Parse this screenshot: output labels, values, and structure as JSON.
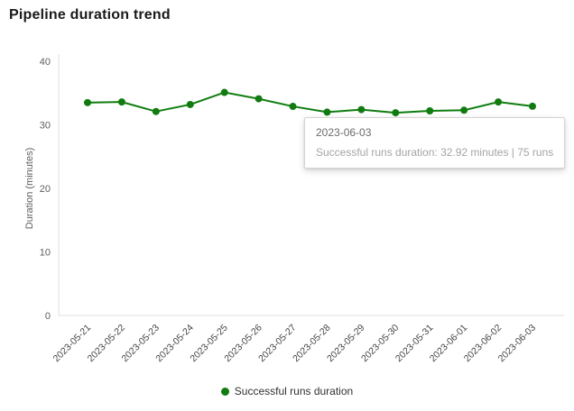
{
  "page": {
    "title": "Pipeline duration trend"
  },
  "chart_data": {
    "type": "line",
    "title": "Pipeline duration trend",
    "xlabel": "",
    "ylabel": "Duration (minutes)",
    "ylim": [
      0,
      40
    ],
    "yticks": [
      0,
      10,
      20,
      30,
      40
    ],
    "grid": false,
    "legend_position": "bottom",
    "categories": [
      "2023-05-21",
      "2023-05-22",
      "2023-05-23",
      "2023-05-24",
      "2023-05-25",
      "2023-05-26",
      "2023-05-27",
      "2023-05-28",
      "2023-05-29",
      "2023-05-30",
      "2023-05-31",
      "2023-06-01",
      "2023-06-02",
      "2023-06-03"
    ],
    "series": [
      {
        "name": "Successful runs duration",
        "color": "#107c10",
        "values": [
          33.5,
          33.6,
          32.1,
          33.2,
          35.1,
          34.1,
          32.9,
          32.0,
          32.4,
          31.9,
          32.2,
          32.3,
          33.6,
          32.92
        ]
      }
    ]
  },
  "tooltip": {
    "title": "2023-06-03",
    "text": "Successful runs duration: 32.92 minutes | 75 runs"
  }
}
